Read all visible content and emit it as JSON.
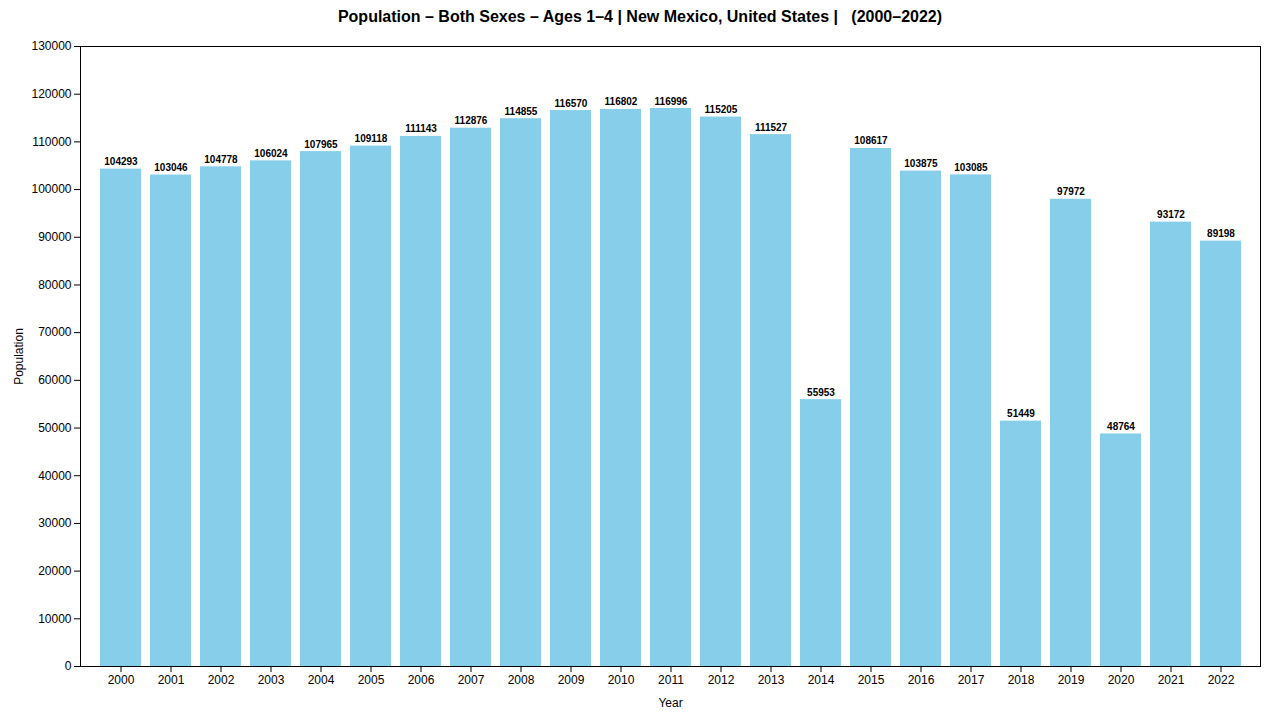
{
  "chart_data": {
    "type": "bar",
    "title": "Population – Both Sexes – Ages 1–4 | New Mexico, United States |   (2000–2022)",
    "xlabel": "Year",
    "ylabel": "Population",
    "categories": [
      "2000",
      "2001",
      "2002",
      "2003",
      "2004",
      "2005",
      "2006",
      "2007",
      "2008",
      "2009",
      "2010",
      "2011",
      "2012",
      "2013",
      "2014",
      "2015",
      "2016",
      "2017",
      "2018",
      "2019",
      "2020",
      "2021",
      "2022"
    ],
    "values": [
      104293,
      103046,
      104778,
      106024,
      107965,
      109118,
      111143,
      112876,
      114855,
      116570,
      116802,
      116996,
      115205,
      111527,
      55953,
      108617,
      103875,
      103085,
      51449,
      97972,
      48764,
      93172,
      89198
    ],
    "color": "#87CEEB",
    "ylim": [
      0,
      130000
    ],
    "yticks": [
      0,
      10000,
      20000,
      30000,
      40000,
      50000,
      60000,
      70000,
      80000,
      90000,
      100000,
      110000,
      120000,
      130000
    ],
    "grid": false,
    "data_labels": true
  }
}
